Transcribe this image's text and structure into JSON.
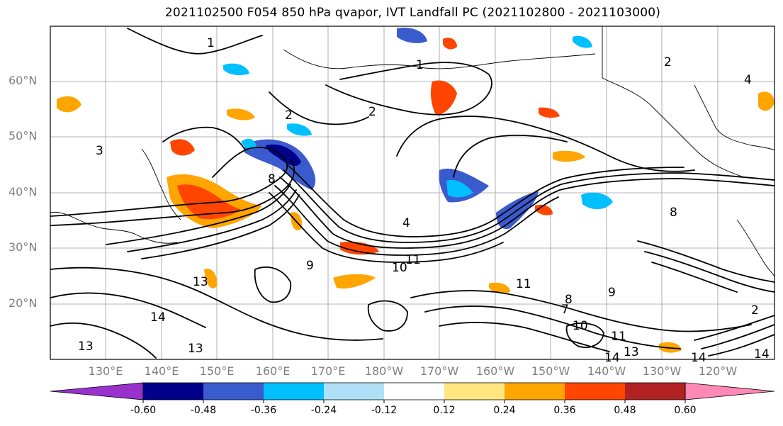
{
  "title": "2021102500 F054 850 hPa qvapor, IVT Landfall PC (2021102800 - 2021103000)",
  "map": {
    "lat_labels": [
      "60°N",
      "50°N",
      "40°N",
      "30°N",
      "20°N"
    ],
    "lon_labels": [
      "130°E",
      "140°E",
      "150°E",
      "160°E",
      "170°E",
      "180°W",
      "170°W",
      "160°W",
      "150°W",
      "140°W",
      "130°W",
      "120°W"
    ],
    "contour_labels": [
      {
        "text": "1"
      },
      {
        "text": "2"
      },
      {
        "text": "2"
      },
      {
        "text": "2"
      },
      {
        "text": "4"
      },
      {
        "text": "1"
      },
      {
        "text": "4"
      },
      {
        "text": "8"
      },
      {
        "text": "9"
      },
      {
        "text": "10"
      },
      {
        "text": "11"
      },
      {
        "text": "13"
      },
      {
        "text": "13"
      },
      {
        "text": "14"
      },
      {
        "text": "13"
      },
      {
        "text": "11"
      },
      {
        "text": "8"
      },
      {
        "text": "9"
      },
      {
        "text": "10"
      },
      {
        "text": "11"
      },
      {
        "text": "13"
      },
      {
        "text": "14"
      },
      {
        "text": "14"
      },
      {
        "text": "14"
      },
      {
        "text": "2"
      },
      {
        "text": "8"
      },
      {
        "text": "7"
      },
      {
        "text": "3"
      }
    ]
  },
  "colorbar": {
    "colors": [
      "#9932cc",
      "#00008b",
      "#3a5bcd",
      "#00bfff",
      "#b0e0f7",
      "#ffffff",
      "#ffe680",
      "#ffa500",
      "#ff4500",
      "#b22222",
      "#ff88b4"
    ],
    "ticks": [
      "-0.60",
      "-0.48",
      "-0.36",
      "-0.24",
      "-0.12",
      "0.12",
      "0.24",
      "0.36",
      "0.48",
      "0.60"
    ]
  }
}
